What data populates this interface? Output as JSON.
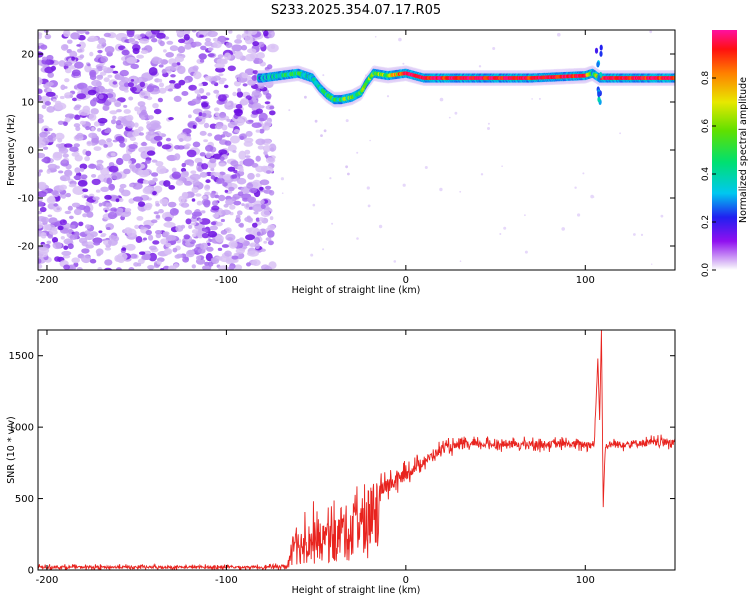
{
  "title": "S233.2025.354.07.17.R05",
  "chart_data": [
    {
      "type": "heatmap",
      "xlabel": "Height of straight line (km)",
      "ylabel": "Frequency (Hz)",
      "xlim": [
        -205,
        150
      ],
      "ylim": [
        -25,
        25
      ],
      "xticks": [
        -200,
        -100,
        0,
        100
      ],
      "yticks": [
        20,
        10,
        0,
        -10,
        -20
      ],
      "colorbar": {
        "label": "Normalized spectral amplitude",
        "range": [
          0,
          1
        ],
        "ticks": [
          "0.0",
          "0.2",
          "0.4",
          "0.6",
          "0.8"
        ]
      },
      "noise_region_x": [
        -205,
        -74
      ],
      "signal_track": {
        "x": [
          -80,
          -70,
          -60,
          -52,
          -48,
          -44,
          -40,
          -36,
          -30,
          -25,
          -22,
          -18,
          -10,
          0,
          10,
          40,
          70,
          100,
          104,
          108,
          112,
          130,
          150
        ],
        "frequency": [
          15,
          15.5,
          16,
          15,
          13,
          11.5,
          10.5,
          10.5,
          11,
          12,
          14,
          16,
          15.5,
          16,
          15,
          15,
          15,
          15.5,
          16,
          15,
          15,
          15,
          15
        ],
        "amplitude": [
          0.35,
          0.45,
          0.5,
          0.4,
          0.45,
          0.5,
          0.55,
          0.55,
          0.6,
          0.6,
          0.55,
          0.6,
          0.7,
          0.9,
          0.95,
          0.95,
          0.95,
          0.95,
          0.4,
          0.9,
          0.95,
          0.95,
          0.95
        ]
      },
      "band_center_hz": 15
    },
    {
      "type": "line",
      "xlabel": "Height of straight line (km)",
      "ylabel": "SNR (10 * v/v)",
      "xlim": [
        -205,
        150
      ],
      "ylim": [
        0,
        1680
      ],
      "xticks": [
        -200,
        -100,
        0,
        100
      ],
      "yticks": [
        0,
        500,
        1000,
        1500
      ],
      "series": [
        {
          "color": "#e8231e",
          "x": [
            -205,
            -150,
            -100,
            -75,
            -66,
            -64,
            -60,
            -55,
            -50,
            -45,
            -40,
            -35,
            -30,
            -25,
            -20,
            -15,
            -10,
            -5,
            0,
            5,
            10,
            15,
            20,
            30,
            40,
            50,
            60,
            70,
            80,
            90,
            100,
            105,
            107,
            108,
            109,
            110,
            111,
            112,
            115,
            120,
            130,
            140,
            150
          ],
          "y": [
            20,
            20,
            20,
            20,
            30,
            200,
            250,
            280,
            260,
            330,
            310,
            380,
            420,
            470,
            510,
            560,
            590,
            630,
            670,
            720,
            760,
            800,
            850,
            870,
            880,
            880,
            880,
            880,
            880,
            880,
            880,
            880,
            1480,
            1050,
            1680,
            440,
            850,
            870,
            880,
            880,
            890,
            890,
            900
          ],
          "noise_amp": [
            15,
            15,
            15,
            15,
            20,
            200,
            200,
            200,
            200,
            200,
            190,
            170,
            150,
            130,
            110,
            100,
            90,
            80,
            70,
            60,
            55,
            50,
            50,
            45,
            40,
            40,
            40,
            40,
            40,
            40,
            40,
            40,
            0,
            0,
            0,
            0,
            40,
            40,
            40,
            40,
            40,
            40,
            40
          ]
        }
      ]
    }
  ]
}
